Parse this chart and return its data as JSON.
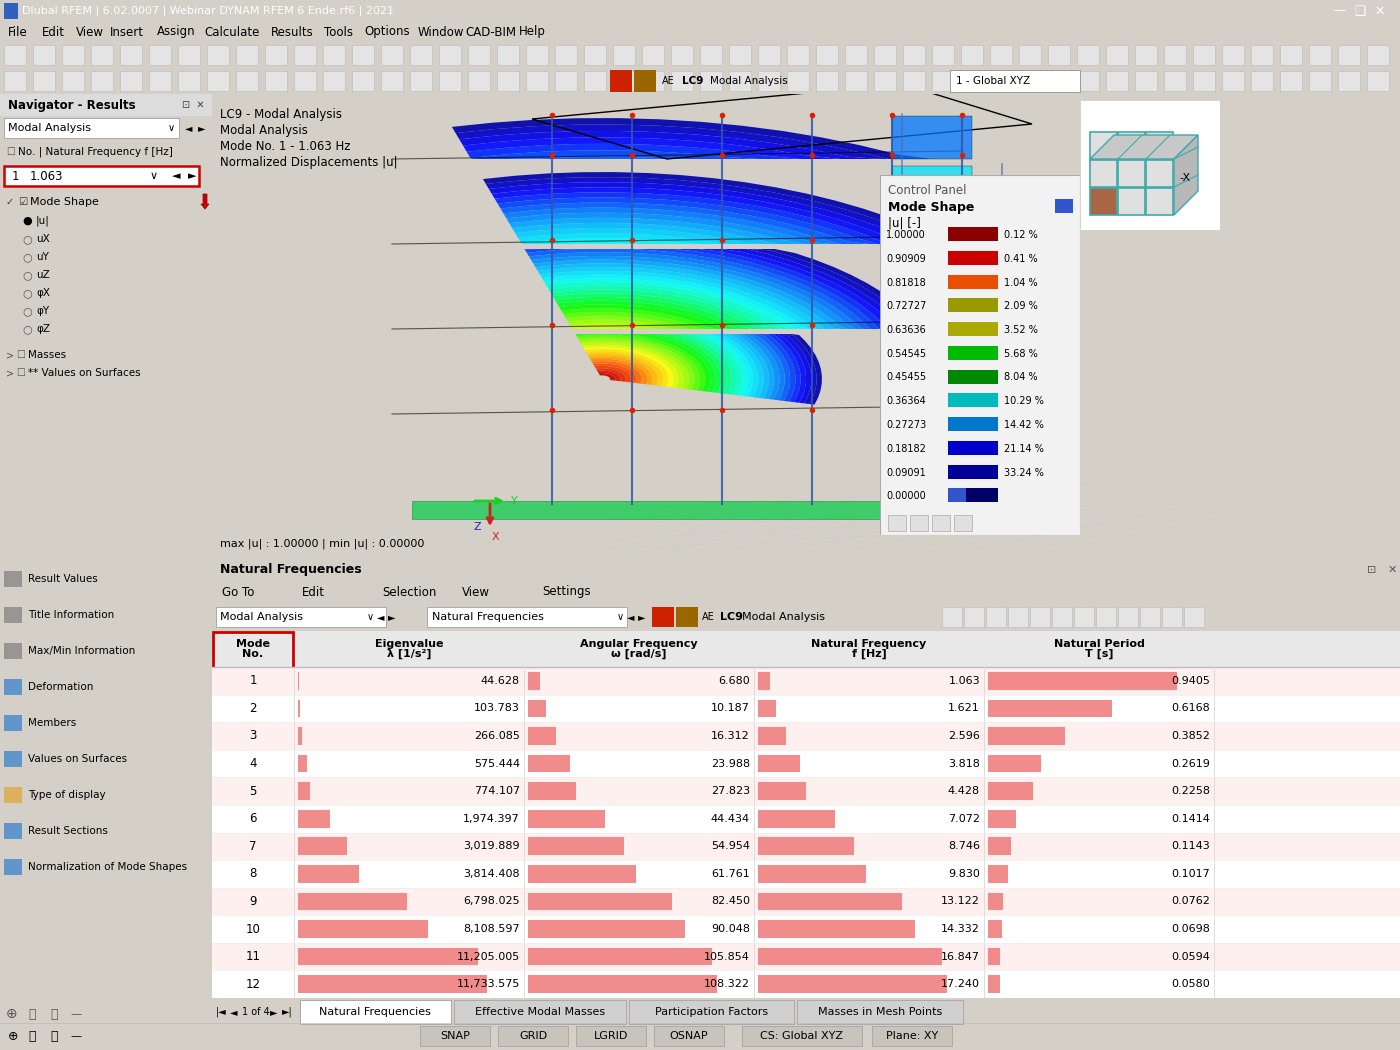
{
  "title_bar": "Dlubal RFEM | 6.02.0007 | Webinar DYNAM RFEM 6 Ende.rf6 | 2021",
  "menu_items": [
    "File",
    "Edit",
    "View",
    "Insert",
    "Assign",
    "Calculate",
    "Results",
    "Tools",
    "Options",
    "Window",
    "CAD-BIM",
    "Help"
  ],
  "navigator_title": "Navigator - Results",
  "viewport_text": [
    "LC9 - Modal Analysis",
    "Modal Analysis",
    "Mode No. 1 - 1.063 Hz",
    "Normalized Displacements |u|"
  ],
  "max_min_text": "max |u| : 1.00000 | min |u| : 0.00000",
  "legend_values": [
    "1.00000",
    "0.90909",
    "0.81818",
    "0.72727",
    "0.63636",
    "0.54545",
    "0.45455",
    "0.36364",
    "0.27273",
    "0.18182",
    "0.09091",
    "0.00000"
  ],
  "legend_percentages": [
    "0.12 %",
    "0.41 %",
    "1.04 %",
    "2.09 %",
    "3.52 %",
    "5.68 %",
    "8.04 %",
    "10.29 %",
    "14.42 %",
    "21.14 %",
    "33.24 %",
    ""
  ],
  "legend_colors": [
    "#8B0000",
    "#CC0000",
    "#E85000",
    "#999900",
    "#AAAA00",
    "#00BB00",
    "#008800",
    "#00BBBB",
    "#0077CC",
    "#0000CC",
    "#000099",
    "#000066"
  ],
  "table_title": "Natural Frequencies",
  "table_headers": [
    "Mode\nNo.",
    "Eigenvalue\nλ [1/s²]",
    "Angular Frequency\nω [rad/s]",
    "Natural Frequency\nf [Hz]",
    "Natural Period\nT [s]"
  ],
  "table_data": [
    [
      1,
      44.628,
      6.68,
      1.063,
      0.9405
    ],
    [
      2,
      103.783,
      10.187,
      1.621,
      0.6168
    ],
    [
      3,
      266.085,
      16.312,
      2.596,
      0.3852
    ],
    [
      4,
      575.444,
      23.988,
      3.818,
      0.2619
    ],
    [
      5,
      774.107,
      27.823,
      4.428,
      0.2258
    ],
    [
      6,
      1974.397,
      44.434,
      7.072,
      0.1414
    ],
    [
      7,
      3019.889,
      54.954,
      8.746,
      0.1143
    ],
    [
      8,
      3814.408,
      61.761,
      9.83,
      0.1017
    ],
    [
      9,
      6798.025,
      82.45,
      13.122,
      0.0762
    ],
    [
      10,
      8108.597,
      90.048,
      14.332,
      0.0698
    ],
    [
      11,
      11205.005,
      105.854,
      16.847,
      0.0594
    ],
    [
      12,
      11733.575,
      108.322,
      17.24,
      0.058
    ]
  ],
  "tab_labels": [
    "Natural Frequencies",
    "Effective Modal Masses",
    "Participation Factors",
    "Masses in Mesh Points"
  ],
  "status_items": [
    "SNAP",
    "GRID",
    "LGRID",
    "OSNAP"
  ],
  "status_right": [
    "CS: Global XYZ",
    "Plane: XY"
  ],
  "nav2_items": [
    "Result Values",
    "Title Information",
    "Max/Min Information",
    "Deformation",
    "Members",
    "Values on Surfaces",
    "Type of display",
    "Result Sections",
    "Normalization of Mode Shapes"
  ],
  "nav2_icon_colors": [
    "#888888",
    "#888888",
    "#888888",
    "#4488CC",
    "#4488CC",
    "#4488CC",
    "#DDAA44",
    "#4488CC",
    "#4488CC"
  ]
}
